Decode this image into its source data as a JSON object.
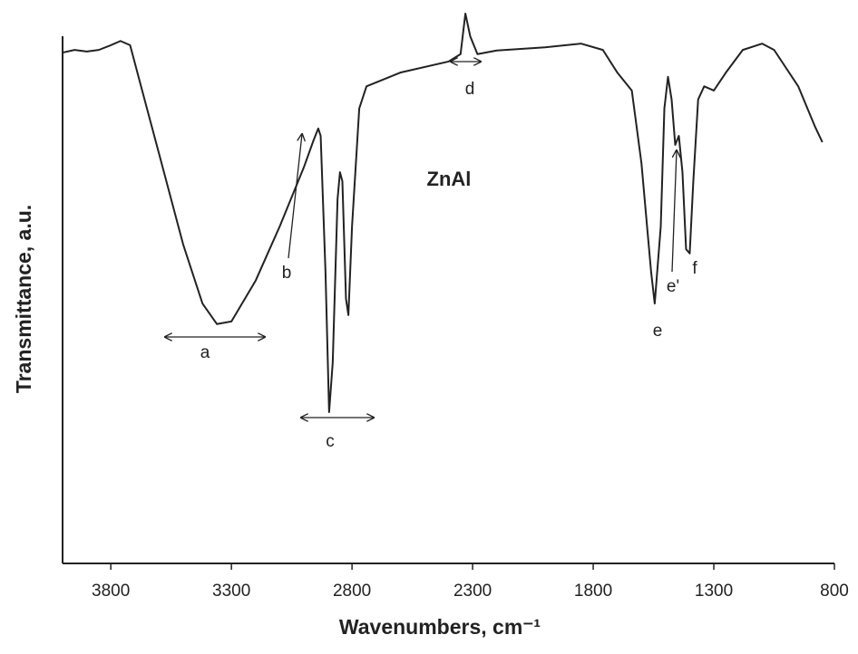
{
  "chart_data": {
    "type": "line",
    "title": "ZnAl",
    "x_label": "Wavenumbers, cm⁻¹",
    "y_label": "Transmittance, a.u.",
    "x": [
      4000,
      3950,
      3900,
      3850,
      3800,
      3760,
      3720,
      3680,
      3600,
      3500,
      3420,
      3360,
      3300,
      3200,
      3100,
      3000,
      2960,
      2940,
      2930,
      2910,
      2895,
      2880,
      2860,
      2850,
      2840,
      2825,
      2815,
      2800,
      2770,
      2740,
      2600,
      2400,
      2350,
      2330,
      2310,
      2280,
      2200,
      2000,
      1850,
      1760,
      1700,
      1640,
      1600,
      1560,
      1545,
      1520,
      1505,
      1490,
      1475,
      1460,
      1445,
      1430,
      1415,
      1400,
      1385,
      1365,
      1340,
      1300,
      1250,
      1180,
      1100,
      1050,
      950,
      880,
      850
    ],
    "series": [
      {
        "name": "ZnAl",
        "color": "#222222",
        "values": [
          96.9,
          97.4,
          97.1,
          97.4,
          98.3,
          99.1,
          98.3,
          91.4,
          77.7,
          60.5,
          49.3,
          45.4,
          45.9,
          53.6,
          63.9,
          75.1,
          80.2,
          82.5,
          81.1,
          55.3,
          28.7,
          38.1,
          69.1,
          74.2,
          72.5,
          50.2,
          47.1,
          63.9,
          86.3,
          90.5,
          93.1,
          95.2,
          96.6,
          104.3,
          100,
          96.6,
          97.3,
          97.9,
          98.6,
          97.4,
          93.1,
          89.7,
          75.9,
          55.3,
          49.3,
          63.9,
          86.3,
          92.3,
          88.0,
          79.4,
          81.1,
          74.2,
          59.6,
          58.8,
          72.5,
          88.0,
          90.5,
          89.7,
          93.1,
          97.4,
          98.6,
          97.4,
          90.5,
          82.8,
          79.9
        ]
      }
    ],
    "xlim": [
      4000,
      800
    ],
    "xticks": [
      3800,
      3300,
      2800,
      2300,
      1800,
      1300,
      800
    ],
    "ylim": [
      0,
      100
    ],
    "annotations": [
      "a",
      "b",
      "c",
      "d",
      "e",
      "e'",
      "f"
    ]
  }
}
